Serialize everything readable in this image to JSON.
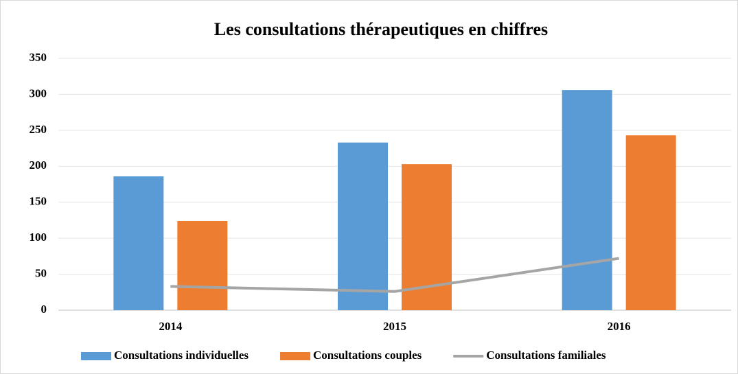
{
  "chart_data": {
    "type": "bar",
    "title": "Les consultations thérapeutiques en chiffres",
    "categories": [
      "2014",
      "2015",
      "2016"
    ],
    "series": [
      {
        "name": "Consultations individuelles",
        "color": "#5b9bd5",
        "values": [
          186,
          233,
          306
        ]
      },
      {
        "name": "Consultations couples",
        "color": "#ed7d31",
        "values": [
          124,
          203,
          243
        ]
      },
      {
        "name": "Consultations familiales",
        "color": "#a5a5a5",
        "type": "line",
        "values": [
          33,
          26,
          72
        ]
      }
    ],
    "ylim": [
      0,
      350
    ],
    "yticks": [
      0,
      50,
      100,
      150,
      200,
      250,
      300,
      350
    ],
    "grid": true,
    "legend": "bottom"
  }
}
